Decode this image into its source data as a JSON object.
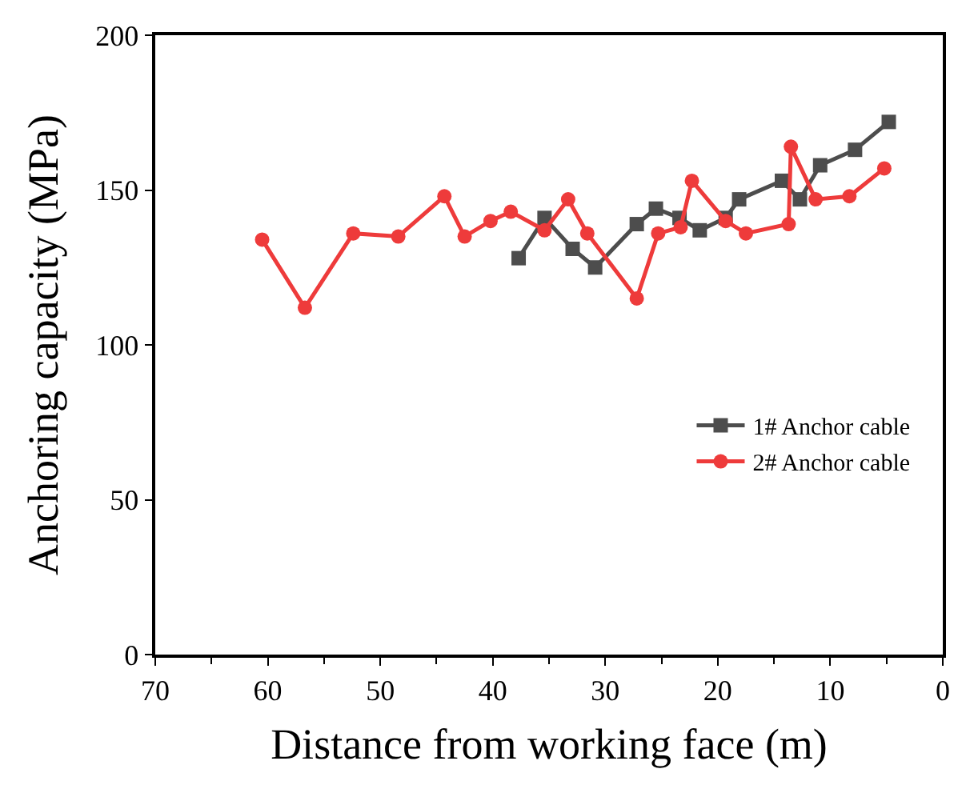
{
  "chart_data": {
    "type": "line",
    "xlabel": "Distance from working face (m)",
    "ylabel": "Anchoring capacity (MPa)",
    "xlim": [
      70,
      0
    ],
    "xticks": [
      70,
      60,
      50,
      40,
      30,
      20,
      10,
      0
    ],
    "ylim": [
      0,
      200
    ],
    "yticks": [
      0,
      50,
      100,
      150,
      200
    ],
    "legend": "bottom right",
    "series": [
      {
        "name": "1# Anchor cable",
        "color": "#4d4d4d",
        "marker": "square",
        "x": [
          37.7,
          35.4,
          32.9,
          30.9,
          27.2,
          25.5,
          23.4,
          21.6,
          19.3,
          18.1,
          14.3,
          12.7,
          10.9,
          7.8,
          4.8
        ],
        "values": [
          128,
          141,
          131,
          125,
          139,
          144,
          141,
          137,
          141,
          147,
          153,
          147,
          158,
          163,
          172
        ]
      },
      {
        "name": "2# Anchor cable",
        "color": "#ee3b3b",
        "marker": "circle",
        "x": [
          60.5,
          56.7,
          52.4,
          48.4,
          44.3,
          42.5,
          40.2,
          38.4,
          35.4,
          33.3,
          31.6,
          27.2,
          25.3,
          23.3,
          22.3,
          19.3,
          17.5,
          13.7,
          13.5,
          11.3,
          8.3,
          5.2
        ],
        "values": [
          134,
          112,
          136,
          135,
          148,
          135,
          140,
          143,
          137,
          147,
          136,
          115,
          136,
          138,
          153,
          140,
          136,
          139,
          164,
          147,
          148,
          157
        ]
      }
    ]
  }
}
